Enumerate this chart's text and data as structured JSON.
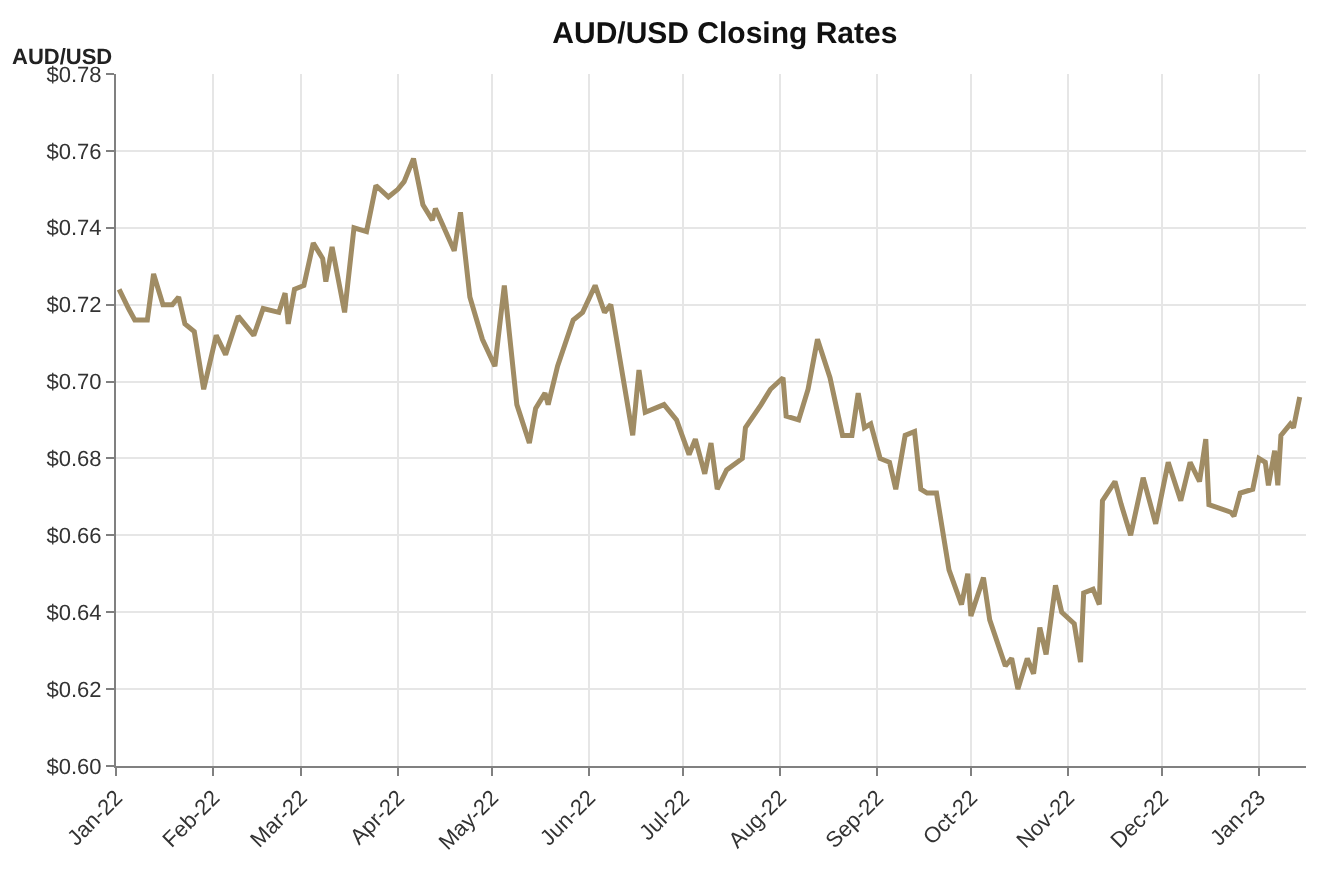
{
  "chart_data": {
    "type": "line",
    "title": "AUD/USD Closing Rates",
    "ylabel": "AUD/USD",
    "x": [
      "2022-01-02",
      "2022-01-05",
      "2022-01-07",
      "2022-01-11",
      "2022-01-13",
      "2022-01-16",
      "2022-01-19",
      "2022-01-21",
      "2022-01-23",
      "2022-01-26",
      "2022-01-29",
      "2022-02-02",
      "2022-02-05",
      "2022-02-09",
      "2022-02-14",
      "2022-02-17",
      "2022-02-22",
      "2022-02-24",
      "2022-02-25",
      "2022-02-27",
      "2022-03-02",
      "2022-03-05",
      "2022-03-08",
      "2022-03-09",
      "2022-03-11",
      "2022-03-15",
      "2022-03-18",
      "2022-03-22",
      "2022-03-25",
      "2022-03-29",
      "2022-04-01",
      "2022-04-03",
      "2022-04-06",
      "2022-04-09",
      "2022-04-12",
      "2022-04-13",
      "2022-04-19",
      "2022-04-21",
      "2022-04-24",
      "2022-04-28",
      "2022-05-02",
      "2022-05-05",
      "2022-05-09",
      "2022-05-13",
      "2022-05-15",
      "2022-05-18",
      "2022-05-19",
      "2022-05-22",
      "2022-05-27",
      "2022-05-30",
      "2022-06-03",
      "2022-06-06",
      "2022-06-08",
      "2022-06-15",
      "2022-06-17",
      "2022-06-19",
      "2022-06-25",
      "2022-06-29",
      "2022-07-03",
      "2022-07-05",
      "2022-07-08",
      "2022-07-10",
      "2022-07-12",
      "2022-07-15",
      "2022-07-20",
      "2022-07-21",
      "2022-07-26",
      "2022-07-29",
      "2022-08-02",
      "2022-08-03",
      "2022-08-07",
      "2022-08-10",
      "2022-08-13",
      "2022-08-17",
      "2022-08-21",
      "2022-08-24",
      "2022-08-26",
      "2022-08-28",
      "2022-08-30",
      "2022-09-02",
      "2022-09-05",
      "2022-09-07",
      "2022-09-10",
      "2022-09-13",
      "2022-09-15",
      "2022-09-17",
      "2022-09-20",
      "2022-09-24",
      "2022-09-28",
      "2022-09-30",
      "2022-10-01",
      "2022-10-05",
      "2022-10-07",
      "2022-10-12",
      "2022-10-14",
      "2022-10-16",
      "2022-10-19",
      "2022-10-21",
      "2022-10-23",
      "2022-10-25",
      "2022-10-28",
      "2022-10-30",
      "2022-11-03",
      "2022-11-05",
      "2022-11-06",
      "2022-11-09",
      "2022-11-11",
      "2022-11-12",
      "2022-11-16",
      "2022-11-18",
      "2022-11-21",
      "2022-11-25",
      "2022-11-29",
      "2022-12-03",
      "2022-12-07",
      "2022-12-10",
      "2022-12-13",
      "2022-12-15",
      "2022-12-16",
      "2022-12-23",
      "2022-12-24",
      "2022-12-26",
      "2022-12-30",
      "2023-01-01",
      "2023-01-03",
      "2023-01-04",
      "2023-01-06",
      "2023-01-07",
      "2023-01-08",
      "2023-01-11",
      "2023-01-12",
      "2023-01-14"
    ],
    "series": [
      {
        "color": "#a08c64",
        "values": [
          0.724,
          0.719,
          0.716,
          0.716,
          0.728,
          0.72,
          0.72,
          0.722,
          0.715,
          0.713,
          0.698,
          0.712,
          0.707,
          0.717,
          0.712,
          0.719,
          0.718,
          0.723,
          0.715,
          0.724,
          0.725,
          0.736,
          0.732,
          0.726,
          0.735,
          0.718,
          0.74,
          0.739,
          0.751,
          0.748,
          0.75,
          0.752,
          0.758,
          0.746,
          0.742,
          0.745,
          0.734,
          0.744,
          0.722,
          0.711,
          0.704,
          0.725,
          0.694,
          0.684,
          0.693,
          0.697,
          0.694,
          0.704,
          0.716,
          0.718,
          0.725,
          0.718,
          0.72,
          0.686,
          0.703,
          0.692,
          0.694,
          0.69,
          0.681,
          0.685,
          0.676,
          0.684,
          0.672,
          0.677,
          0.68,
          0.688,
          0.694,
          0.698,
          0.701,
          0.691,
          0.69,
          0.698,
          0.711,
          0.701,
          0.686,
          0.686,
          0.697,
          0.688,
          0.689,
          0.68,
          0.679,
          0.672,
          0.686,
          0.687,
          0.672,
          0.671,
          0.671,
          0.651,
          0.642,
          0.65,
          0.639,
          0.649,
          0.638,
          0.626,
          0.628,
          0.62,
          0.628,
          0.624,
          0.636,
          0.629,
          0.647,
          0.64,
          0.637,
          0.627,
          0.645,
          0.646,
          0.642,
          0.669,
          0.674,
          0.668,
          0.66,
          0.675,
          0.663,
          0.679,
          0.669,
          0.679,
          0.674,
          0.685,
          0.668,
          0.666,
          0.665,
          0.671,
          0.672,
          0.68,
          0.679,
          0.673,
          0.682,
          0.673,
          0.686,
          0.689,
          0.688,
          0.696
        ]
      }
    ],
    "xlim": [
      "2022-01-01",
      "2023-01-16"
    ],
    "xticks": [
      {
        "value": "2022-01-01",
        "label": "Jan-22"
      },
      {
        "value": "2022-02-01",
        "label": "Feb-22"
      },
      {
        "value": "2022-03-01",
        "label": "Mar-22"
      },
      {
        "value": "2022-04-01",
        "label": "Apr-22"
      },
      {
        "value": "2022-05-01",
        "label": "May-22"
      },
      {
        "value": "2022-06-01",
        "label": "Jun-22"
      },
      {
        "value": "2022-07-01",
        "label": "Jul-22"
      },
      {
        "value": "2022-08-01",
        "label": "Aug-22"
      },
      {
        "value": "2022-09-01",
        "label": "Sep-22"
      },
      {
        "value": "2022-10-01",
        "label": "Oct-22"
      },
      {
        "value": "2022-11-01",
        "label": "Nov-22"
      },
      {
        "value": "2022-12-01",
        "label": "Dec-22"
      },
      {
        "value": "2023-01-01",
        "label": "Jan-23"
      }
    ],
    "ylim": [
      0.6,
      0.78
    ],
    "yticks": [
      {
        "value": 0.6,
        "label": "$0.60"
      },
      {
        "value": 0.62,
        "label": "$0.62"
      },
      {
        "value": 0.64,
        "label": "$0.64"
      },
      {
        "value": 0.66,
        "label": "$0.66"
      },
      {
        "value": 0.68,
        "label": "$0.68"
      },
      {
        "value": 0.7,
        "label": "$0.70"
      },
      {
        "value": 0.72,
        "label": "$0.72"
      },
      {
        "value": 0.74,
        "label": "$0.74"
      },
      {
        "value": 0.76,
        "label": "$0.76"
      },
      {
        "value": 0.78,
        "label": "$0.78"
      }
    ],
    "grid": true,
    "line_style": "solid",
    "marker": "none"
  }
}
